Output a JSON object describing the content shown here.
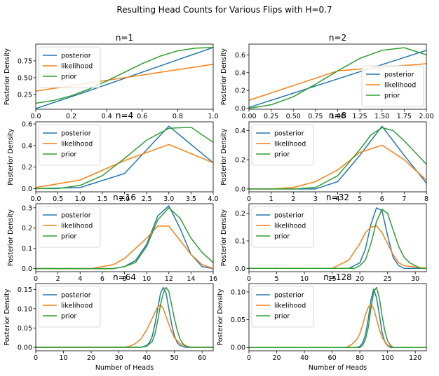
{
  "figure": {
    "suptitle": "Resulting Head Counts for Various Flips with H=0.7"
  },
  "colors": {
    "posterior": "#1f77b4",
    "likelihood": "#ff7f0e",
    "prior": "#2ca02c"
  },
  "chart_data": [
    {
      "type": "line",
      "title": "n=1",
      "ylabel": "Posterior Density",
      "xlabel": "",
      "xlim": [
        0,
        1
      ],
      "ylim": [
        0.03,
        1.0
      ],
      "xticks": [
        0,
        0.2,
        0.4,
        0.6,
        0.8,
        1.0
      ],
      "xtick_labels": [
        "0.0",
        "0.2",
        "0.4",
        "0.6",
        "0.8",
        "1.0"
      ],
      "yticks": [
        0.25,
        0.5,
        0.75
      ],
      "ytick_labels": [
        "0.25",
        "0.50",
        "0.75"
      ],
      "legend_position": "upper-left",
      "series": [
        {
          "name": "posterior",
          "x": [
            0,
            0.25,
            0.5,
            0.75,
            1.0
          ],
          "y": [
            0.04,
            0.26,
            0.49,
            0.72,
            0.95
          ]
        },
        {
          "name": "likelihood",
          "x": [
            0,
            0.25,
            0.5,
            0.75,
            1.0
          ],
          "y": [
            0.3,
            0.4,
            0.5,
            0.6,
            0.7
          ]
        },
        {
          "name": "prior",
          "x": [
            0,
            0.1,
            0.2,
            0.3,
            0.4,
            0.5,
            0.6,
            0.7,
            0.8,
            0.9,
            1.0
          ],
          "y": [
            0.12,
            0.16,
            0.23,
            0.33,
            0.45,
            0.58,
            0.71,
            0.82,
            0.9,
            0.94,
            0.95
          ]
        }
      ]
    },
    {
      "type": "line",
      "title": "n=2",
      "ylabel": "Posterior Density",
      "xlabel": "",
      "xlim": [
        0,
        2
      ],
      "ylim": [
        -0.01,
        0.72
      ],
      "xticks": [
        0,
        0.25,
        0.5,
        0.75,
        1.0,
        1.25,
        1.5,
        1.75,
        2.0
      ],
      "xtick_labels": [
        "0.00",
        "0.25",
        "0.50",
        "0.75",
        "1.00",
        "1.25",
        "1.50",
        "1.75",
        "2.00"
      ],
      "yticks": [
        0,
        0.2,
        0.4,
        0.6
      ],
      "ytick_labels": [
        "0.0",
        "0.2",
        "0.4",
        "0.6"
      ],
      "legend_position": "lower-right",
      "series": [
        {
          "name": "posterior",
          "x": [
            0,
            1,
            2
          ],
          "y": [
            0.01,
            0.33,
            0.65
          ]
        },
        {
          "name": "likelihood",
          "x": [
            0,
            1,
            1.5,
            2
          ],
          "y": [
            0.09,
            0.42,
            0.46,
            0.5
          ]
        },
        {
          "name": "prior",
          "x": [
            0,
            0.25,
            0.5,
            0.75,
            1.0,
            1.25,
            1.5,
            1.75,
            2.0
          ],
          "y": [
            0.0,
            0.04,
            0.13,
            0.27,
            0.42,
            0.56,
            0.65,
            0.68,
            0.6
          ]
        }
      ]
    },
    {
      "type": "line",
      "title": "n=4",
      "ylabel": "Posterior Density",
      "xlabel": "",
      "xlim": [
        0,
        4
      ],
      "ylim": [
        -0.03,
        0.62
      ],
      "xticks": [
        0,
        0.5,
        1.0,
        1.5,
        2.0,
        2.5,
        3.0,
        3.5,
        4.0
      ],
      "xtick_labels": [
        "0.0",
        "0.5",
        "1.0",
        "1.5",
        "2.0",
        "2.5",
        "3.0",
        "3.5",
        "4.0"
      ],
      "yticks": [
        0,
        0.2,
        0.4,
        0.6
      ],
      "ytick_labels": [
        "0.0",
        "0.2",
        "0.4",
        "0.6"
      ],
      "legend_position": "upper-left",
      "series": [
        {
          "name": "posterior",
          "x": [
            0,
            1,
            2,
            3,
            4
          ],
          "y": [
            0.0,
            0.01,
            0.14,
            0.58,
            0.24
          ]
        },
        {
          "name": "likelihood",
          "x": [
            0,
            1,
            2,
            3,
            4
          ],
          "y": [
            0.01,
            0.08,
            0.26,
            0.41,
            0.24
          ]
        },
        {
          "name": "prior",
          "x": [
            0,
            0.5,
            1.0,
            1.5,
            2.0,
            2.5,
            3.0,
            3.5,
            4.0
          ],
          "y": [
            0.0,
            0.0,
            0.03,
            0.12,
            0.28,
            0.45,
            0.56,
            0.57,
            0.43
          ]
        }
      ]
    },
    {
      "type": "line",
      "title": "n=8",
      "ylabel": "Posterior Density",
      "xlabel": "",
      "xlim": [
        0,
        8
      ],
      "ylim": [
        -0.02,
        0.46
      ],
      "xticks": [
        0,
        1,
        2,
        3,
        4,
        5,
        6,
        7,
        8
      ],
      "xtick_labels": [
        "0",
        "1",
        "2",
        "3",
        "4",
        "5",
        "6",
        "7",
        "8"
      ],
      "yticks": [
        0,
        0.2,
        0.4
      ],
      "ytick_labels": [
        "0.0",
        "0.2",
        "0.4"
      ],
      "legend_position": "upper-left",
      "series": [
        {
          "name": "posterior",
          "x": [
            0,
            1,
            2,
            3,
            4,
            5,
            6,
            7,
            8
          ],
          "y": [
            0.0,
            0.0,
            0.0,
            0.0,
            0.05,
            0.23,
            0.43,
            0.23,
            0.04
          ]
        },
        {
          "name": "likelihood",
          "x": [
            0,
            1,
            2,
            3,
            4,
            5,
            6,
            7,
            8
          ],
          "y": [
            0.0,
            0.0,
            0.01,
            0.05,
            0.13,
            0.25,
            0.3,
            0.2,
            0.06
          ]
        },
        {
          "name": "prior",
          "x": [
            0,
            1,
            2,
            3,
            4,
            5,
            5.5,
            6,
            6.5,
            7,
            7.5,
            8
          ],
          "y": [
            0.0,
            0.0,
            0.0,
            0.01,
            0.09,
            0.27,
            0.37,
            0.42,
            0.4,
            0.33,
            0.25,
            0.17
          ]
        }
      ]
    },
    {
      "type": "line",
      "title": "n=16",
      "ylabel": "Posterior Density",
      "xlabel": "",
      "xlim": [
        0,
        16
      ],
      "ylim": [
        -0.015,
        0.32
      ],
      "xticks": [
        0,
        2,
        4,
        6,
        8,
        10,
        12,
        14,
        16
      ],
      "xtick_labels": [
        "0",
        "2",
        "4",
        "6",
        "8",
        "10",
        "12",
        "14",
        "16"
      ],
      "yticks": [
        0,
        0.1,
        0.2,
        0.3
      ],
      "ytick_labels": [
        "0.0",
        "0.1",
        "0.2",
        "0.3"
      ],
      "legend_position": "upper-left",
      "series": [
        {
          "name": "posterior",
          "x": [
            0,
            6,
            7,
            8,
            9,
            10,
            11,
            12,
            13,
            14,
            15,
            16
          ],
          "y": [
            0.0,
            0.0,
            0.0,
            0.01,
            0.04,
            0.12,
            0.26,
            0.31,
            0.2,
            0.07,
            0.01,
            0.0
          ]
        },
        {
          "name": "likelihood",
          "x": [
            0,
            5,
            6,
            7,
            8,
            9,
            10,
            11,
            12,
            13,
            14,
            15,
            16
          ],
          "y": [
            0.0,
            0.0,
            0.01,
            0.02,
            0.05,
            0.1,
            0.15,
            0.21,
            0.21,
            0.14,
            0.07,
            0.02,
            0.0
          ]
        },
        {
          "name": "prior",
          "x": [
            0,
            6,
            7,
            8,
            9,
            10,
            11,
            12,
            13,
            14,
            15,
            16
          ],
          "y": [
            0.0,
            0.0,
            0.0,
            0.01,
            0.03,
            0.11,
            0.24,
            0.3,
            0.25,
            0.15,
            0.08,
            0.03
          ]
        }
      ]
    },
    {
      "type": "line",
      "title": "n=32",
      "ylabel": "Posterior Density",
      "xlabel": "",
      "xlim": [
        0,
        32
      ],
      "ylim": [
        -0.012,
        0.235
      ],
      "xticks": [
        0,
        5,
        10,
        15,
        20,
        25,
        30
      ],
      "xtick_labels": [
        "0",
        "5",
        "10",
        "15",
        "20",
        "25",
        "30"
      ],
      "yticks": [
        0,
        0.1,
        0.2
      ],
      "ytick_labels": [
        "0.0",
        "0.1",
        "0.2"
      ],
      "legend_position": "upper-left",
      "series": [
        {
          "name": "posterior",
          "x": [
            0,
            17,
            18,
            19,
            20,
            21,
            22,
            23,
            24,
            25,
            26,
            27,
            28,
            29,
            30,
            32
          ],
          "y": [
            0.0,
            0.0,
            0.0,
            0.01,
            0.02,
            0.07,
            0.16,
            0.22,
            0.21,
            0.12,
            0.04,
            0.01,
            0.0,
            0.0,
            0.0,
            0.0
          ]
        },
        {
          "name": "likelihood",
          "x": [
            0,
            15,
            16,
            17,
            18,
            19,
            20,
            21,
            22,
            23,
            24,
            25,
            26,
            27,
            28,
            32
          ],
          "y": [
            0.0,
            0.0,
            0.01,
            0.02,
            0.03,
            0.06,
            0.09,
            0.13,
            0.15,
            0.155,
            0.13,
            0.09,
            0.05,
            0.02,
            0.01,
            0.0
          ]
        },
        {
          "name": "prior",
          "x": [
            0,
            17,
            18,
            19,
            20,
            21,
            22,
            23,
            24,
            25,
            26,
            27,
            28,
            29,
            30,
            31,
            32
          ],
          "y": [
            0.0,
            0.0,
            0.0,
            0.0,
            0.01,
            0.03,
            0.09,
            0.17,
            0.215,
            0.2,
            0.14,
            0.08,
            0.04,
            0.02,
            0.01,
            0.0,
            0.0
          ]
        }
      ]
    },
    {
      "type": "line",
      "title": "n=64",
      "ylabel": "Posterior Density",
      "xlabel": "Number of Heads",
      "xlim": [
        0,
        64
      ],
      "ylim": [
        -0.009,
        0.165
      ],
      "xticks": [
        0,
        10,
        20,
        30,
        40,
        50,
        60
      ],
      "xtick_labels": [
        "0",
        "10",
        "20",
        "30",
        "40",
        "50",
        "60"
      ],
      "yticks": [
        0,
        0.05,
        0.1,
        0.15
      ],
      "ytick_labels": [
        "0.00",
        "0.05",
        "0.10",
        "0.15"
      ],
      "legend_position": "upper-left",
      "series": [
        {
          "name": "posterior",
          "x": [
            0,
            36,
            38,
            40,
            41,
            42,
            43,
            44,
            45,
            46,
            47,
            48,
            49,
            50,
            51,
            52,
            54,
            64
          ],
          "y": [
            0.0,
            0.0,
            0.0,
            0.005,
            0.012,
            0.028,
            0.06,
            0.1,
            0.14,
            0.155,
            0.14,
            0.1,
            0.06,
            0.03,
            0.012,
            0.005,
            0.0,
            0.0
          ]
        },
        {
          "name": "likelihood",
          "x": [
            0,
            32,
            34,
            36,
            38,
            40,
            41,
            42,
            43,
            44,
            45,
            46,
            47,
            48,
            49,
            50,
            52,
            54,
            56,
            64
          ],
          "y": [
            0.0,
            0.0,
            0.003,
            0.01,
            0.022,
            0.045,
            0.06,
            0.075,
            0.09,
            0.105,
            0.11,
            0.1,
            0.08,
            0.06,
            0.04,
            0.025,
            0.01,
            0.003,
            0.0,
            0.0
          ]
        },
        {
          "name": "prior",
          "x": [
            0,
            38,
            40,
            42,
            43,
            44,
            45,
            46,
            47,
            48,
            49,
            50,
            51,
            52,
            53,
            54,
            56,
            64
          ],
          "y": [
            0.0,
            0.0,
            0.003,
            0.015,
            0.035,
            0.07,
            0.11,
            0.14,
            0.155,
            0.145,
            0.11,
            0.075,
            0.045,
            0.022,
            0.01,
            0.004,
            0.0,
            0.0
          ]
        }
      ]
    },
    {
      "type": "line",
      "title": "n=128",
      "ylabel": "Posterior Density",
      "xlabel": "Number of Heads",
      "xlim": [
        0,
        128
      ],
      "ylim": [
        -0.006,
        0.115
      ],
      "xticks": [
        0,
        20,
        40,
        60,
        80,
        100,
        120
      ],
      "xtick_labels": [
        "0",
        "20",
        "40",
        "60",
        "80",
        "100",
        "120"
      ],
      "yticks": [
        0,
        0.05,
        0.1
      ],
      "ytick_labels": [
        "0.00",
        "0.05",
        "0.10"
      ],
      "legend_position": "upper-left",
      "series": [
        {
          "name": "posterior",
          "x": [
            0,
            78,
            80,
            82,
            84,
            86,
            88,
            90,
            92,
            94,
            96,
            98,
            100,
            102,
            128
          ],
          "y": [
            0.0,
            0.0,
            0.002,
            0.008,
            0.022,
            0.05,
            0.085,
            0.105,
            0.09,
            0.06,
            0.028,
            0.01,
            0.003,
            0.0,
            0.0
          ]
        },
        {
          "name": "likelihood",
          "x": [
            0,
            70,
            74,
            78,
            80,
            82,
            84,
            86,
            88,
            90,
            92,
            94,
            96,
            100,
            104,
            128
          ],
          "y": [
            0.0,
            0.0,
            0.005,
            0.015,
            0.025,
            0.04,
            0.058,
            0.072,
            0.078,
            0.07,
            0.052,
            0.033,
            0.018,
            0.004,
            0.0,
            0.0
          ]
        },
        {
          "name": "prior",
          "x": [
            0,
            80,
            82,
            84,
            86,
            88,
            90,
            92,
            94,
            96,
            98,
            100,
            102,
            104,
            128
          ],
          "y": [
            0.0,
            0.0,
            0.004,
            0.014,
            0.035,
            0.07,
            0.1,
            0.108,
            0.09,
            0.058,
            0.03,
            0.012,
            0.004,
            0.0,
            0.0
          ]
        }
      ]
    }
  ]
}
